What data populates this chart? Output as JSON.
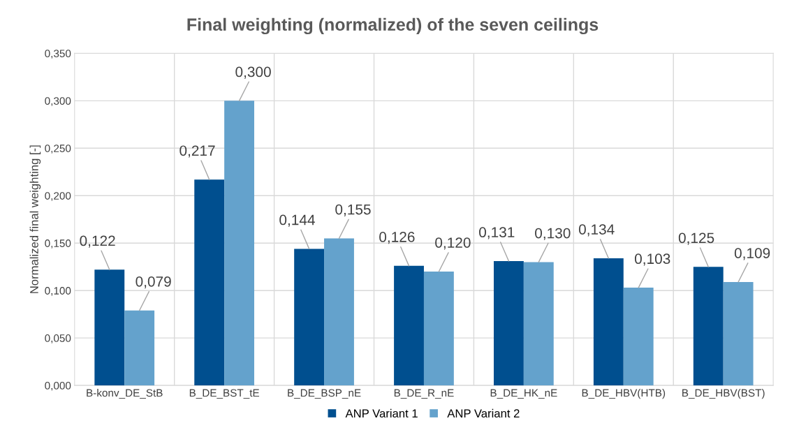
{
  "chart_data": {
    "type": "bar",
    "title": "Final weighting (normalized) of the seven ceilings",
    "ylabel": "Normalized final weighting [-]",
    "categories": [
      "B-konv_DE_StB",
      "B_DE_BST_tE",
      "B_DE_BSP_nE",
      "B_DE_R_nE",
      "B_DE_HK_nE",
      "B_DE_HBV(HTB)",
      "B_DE_HBV(BST)"
    ],
    "series": [
      {
        "name": "ANP Variant 1",
        "color": "#004f8f",
        "values": [
          0.122,
          0.217,
          0.144,
          0.126,
          0.131,
          0.134,
          0.125
        ],
        "value_labels": [
          "0,122",
          "0,217",
          "0,144",
          "0,126",
          "0,131",
          "0,134",
          "0,125"
        ]
      },
      {
        "name": "ANP Variant 2",
        "color": "#64a2cc",
        "values": [
          0.079,
          0.3,
          0.155,
          0.12,
          0.13,
          0.103,
          0.109
        ],
        "value_labels": [
          "0,079",
          "0,300",
          "0,155",
          "0,120",
          "0,130",
          "0,103",
          "0,109"
        ]
      }
    ],
    "ylim": [
      0,
      0.35
    ],
    "yticks": [
      {
        "value": 0,
        "label": "0,000"
      },
      {
        "value": 0.05,
        "label": "0,050"
      },
      {
        "value": 0.1,
        "label": "0,100"
      },
      {
        "value": 0.15,
        "label": "0,150"
      },
      {
        "value": 0.2,
        "label": "0,200"
      },
      {
        "value": 0.25,
        "label": "0,250"
      },
      {
        "value": 0.3,
        "label": "0,300"
      },
      {
        "value": 0.35,
        "label": "0,350"
      }
    ],
    "grid": true,
    "legend": "bottom"
  }
}
